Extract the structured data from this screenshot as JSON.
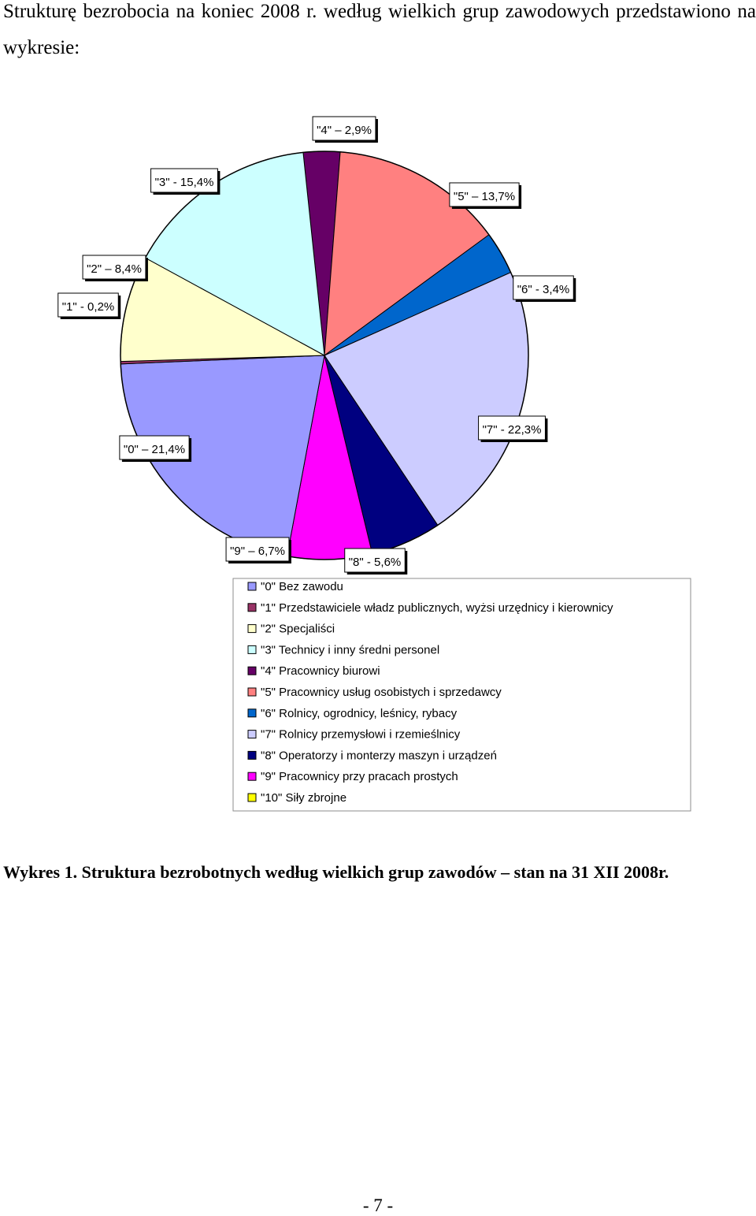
{
  "intro_text": "Strukturę bezrobocia na koniec 2008 r. według wielkich grup zawodowych przedstawiono na wykresie:",
  "chart_data": {
    "type": "pie",
    "title": "",
    "slices": [
      {
        "key": "4",
        "value": 2.9,
        "label": "\"4\" – 2,9%",
        "color": "#660066"
      },
      {
        "key": "5",
        "value": 13.7,
        "label": "\"5\" – 13,7%",
        "color": "#FF8080"
      },
      {
        "key": "6",
        "value": 3.4,
        "label": "\"6\" - 3,4%",
        "color": "#0066CC"
      },
      {
        "key": "7",
        "value": 22.3,
        "label": "\"7\" - 22,3%",
        "color": "#CCCCFF"
      },
      {
        "key": "8",
        "value": 5.6,
        "label": "\"8\" - 5,6%",
        "color": "#000080"
      },
      {
        "key": "9",
        "value": 6.7,
        "label": "\"9\" – 6,7%",
        "color": "#FF00FF"
      },
      {
        "key": "10",
        "value": 0.0,
        "label": "",
        "color": "#FFFF00"
      },
      {
        "key": "0",
        "value": 21.4,
        "label": "\"0\" – 21,4%",
        "color": "#9999FF"
      },
      {
        "key": "1",
        "value": 0.2,
        "label": "\"1\" - 0,2%",
        "color": "#993366"
      },
      {
        "key": "2",
        "value": 8.4,
        "label": "\"2\" – 8,4%",
        "color": "#FFFFCC"
      },
      {
        "key": "3",
        "value": 15.4,
        "label": "\"3\" - 15,4%",
        "color": "#CCFFFF"
      }
    ],
    "legend_position": "bottom-right",
    "legend": [
      {
        "label": "\"0\" Bez zawodu",
        "color": "#9999FF"
      },
      {
        "label": "\"1\" Przedstawiciele władz publicznych, wyżsi urzędnicy i kierownicy",
        "color": "#993366"
      },
      {
        "label": "\"2\" Specjaliści",
        "color": "#FFFFCC"
      },
      {
        "label": "\"3\" Technicy i inny średni  personel",
        "color": "#CCFFFF"
      },
      {
        "label": "\"4\" Pracownicy biurowi",
        "color": "#660066"
      },
      {
        "label": "\"5\" Pracownicy usług osobistych i sprzedawcy",
        "color": "#FF8080"
      },
      {
        "label": "\"6\" Rolnicy, ogrodnicy, leśnicy, rybacy",
        "color": "#0066CC"
      },
      {
        "label": "\"7\" Rolnicy przemysłowi i rzemieślnicy",
        "color": "#CCCCFF"
      },
      {
        "label": "\"8\" Operatorzy i monterzy maszyn i urządzeń",
        "color": "#000080"
      },
      {
        "label": "\"9\" Pracownicy przy pracach prostych",
        "color": "#FF00FF"
      },
      {
        "label": "\"10\" Siły zbrojne",
        "color": "#FFFF00"
      }
    ]
  },
  "caption": "Wykres 1. Struktura bezrobotnych według wielkich grup zawodów – stan na 31 XII 2008r.",
  "page_number": "- 7 -"
}
